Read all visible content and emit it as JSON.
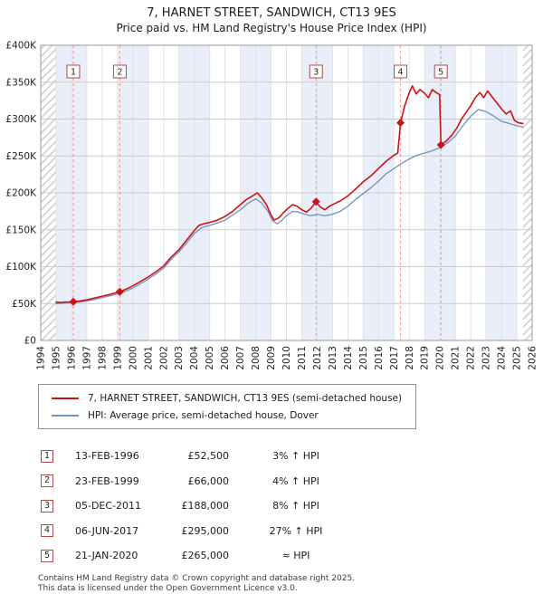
{
  "header": {
    "title": "7, HARNET STREET, SANDWICH, CT13 9ES",
    "subtitle": "Price paid vs. HM Land Registry's House Price Index (HPI)"
  },
  "chart_data": {
    "type": "line",
    "x_range": [
      1994,
      2026
    ],
    "y_range": [
      0,
      400000
    ],
    "y_tick_step": 50000,
    "y_tick_labels": [
      "£0",
      "£50K",
      "£100K",
      "£150K",
      "£200K",
      "£250K",
      "£300K",
      "£350K",
      "£400K"
    ],
    "x_tick_years": [
      1994,
      1995,
      1996,
      1997,
      1998,
      1999,
      2000,
      2001,
      2002,
      2003,
      2004,
      2005,
      2006,
      2007,
      2008,
      2009,
      2010,
      2011,
      2012,
      2013,
      2014,
      2015,
      2016,
      2017,
      2018,
      2019,
      2020,
      2021,
      2022,
      2023,
      2024,
      2025,
      2026
    ],
    "data_start": 1995.0,
    "data_end": 2025.4,
    "band_color": "#e9eef8",
    "grid_color": "#cccccc",
    "year_grid_color": "#dde3ee",
    "hatch_color": "#c9c9c9",
    "sale_line_color": "#e89999",
    "marker_color": "#cc1212",
    "number_box_border": "#b04848",
    "series": [
      {
        "name": "7, HARNET STREET, SANDWICH, CT13 9ES (semi-detached house)",
        "color": "#cc1212",
        "width": 1.6,
        "points": [
          [
            1995.0,
            52000
          ],
          [
            1995.3,
            51500
          ],
          [
            1995.6,
            52200
          ],
          [
            1995.9,
            52300
          ],
          [
            1996.12,
            52500
          ],
          [
            1996.5,
            53200
          ],
          [
            1997.0,
            55000
          ],
          [
            1997.5,
            57500
          ],
          [
            1998.0,
            60000
          ],
          [
            1998.5,
            62500
          ],
          [
            1999.15,
            66000
          ],
          [
            1999.5,
            69000
          ],
          [
            2000.0,
            74000
          ],
          [
            2000.5,
            80000
          ],
          [
            2001.0,
            86000
          ],
          [
            2001.5,
            93000
          ],
          [
            2002.0,
            101000
          ],
          [
            2002.5,
            113000
          ],
          [
            2003.0,
            123000
          ],
          [
            2003.5,
            136000
          ],
          [
            2004.0,
            149000
          ],
          [
            2004.3,
            156000
          ],
          [
            2004.6,
            158000
          ],
          [
            2005.0,
            160000
          ],
          [
            2005.5,
            163000
          ],
          [
            2006.0,
            168000
          ],
          [
            2006.5,
            175000
          ],
          [
            2007.0,
            184000
          ],
          [
            2007.4,
            191000
          ],
          [
            2007.8,
            196000
          ],
          [
            2008.1,
            200000
          ],
          [
            2008.4,
            193000
          ],
          [
            2008.7,
            184000
          ],
          [
            2009.0,
            170000
          ],
          [
            2009.2,
            163000
          ],
          [
            2009.5,
            166000
          ],
          [
            2009.8,
            173000
          ],
          [
            2010.1,
            179000
          ],
          [
            2010.4,
            184000
          ],
          [
            2010.7,
            182000
          ],
          [
            2011.0,
            177000
          ],
          [
            2011.3,
            174000
          ],
          [
            2011.6,
            179000
          ],
          [
            2011.93,
            188000
          ],
          [
            2012.2,
            181000
          ],
          [
            2012.5,
            177000
          ],
          [
            2012.8,
            182000
          ],
          [
            2013.1,
            185000
          ],
          [
            2013.5,
            189000
          ],
          [
            2014.0,
            196000
          ],
          [
            2014.5,
            205000
          ],
          [
            2015.0,
            215000
          ],
          [
            2015.5,
            223000
          ],
          [
            2016.0,
            233000
          ],
          [
            2016.5,
            243000
          ],
          [
            2017.0,
            251000
          ],
          [
            2017.25,
            254000
          ],
          [
            2017.43,
            295000
          ],
          [
            2017.7,
            318000
          ],
          [
            2018.0,
            336000
          ],
          [
            2018.2,
            345000
          ],
          [
            2018.45,
            334000
          ],
          [
            2018.7,
            340000
          ],
          [
            2019.0,
            335000
          ],
          [
            2019.25,
            329000
          ],
          [
            2019.5,
            340000
          ],
          [
            2019.75,
            336000
          ],
          [
            2019.98,
            333000
          ],
          [
            2020.06,
            265000
          ],
          [
            2020.4,
            270000
          ],
          [
            2020.8,
            279000
          ],
          [
            2021.1,
            288000
          ],
          [
            2021.4,
            300000
          ],
          [
            2021.7,
            309000
          ],
          [
            2022.0,
            318000
          ],
          [
            2022.3,
            329000
          ],
          [
            2022.6,
            336000
          ],
          [
            2022.85,
            329000
          ],
          [
            2023.1,
            338000
          ],
          [
            2023.4,
            330000
          ],
          [
            2023.7,
            322000
          ],
          [
            2024.0,
            314000
          ],
          [
            2024.3,
            307000
          ],
          [
            2024.6,
            311000
          ],
          [
            2024.85,
            298000
          ],
          [
            2025.1,
            295000
          ],
          [
            2025.4,
            294000
          ]
        ]
      },
      {
        "name": "HPI: Average price, semi-detached house, Dover",
        "color": "#6f94bd",
        "width": 1.3,
        "points": [
          [
            1995.0,
            50000
          ],
          [
            1995.5,
            50500
          ],
          [
            1996.0,
            51000
          ],
          [
            1996.5,
            52000
          ],
          [
            1997.0,
            53500
          ],
          [
            1997.5,
            55500
          ],
          [
            1998.0,
            58000
          ],
          [
            1998.5,
            60500
          ],
          [
            1999.0,
            63000
          ],
          [
            1999.5,
            66500
          ],
          [
            2000.0,
            71000
          ],
          [
            2000.5,
            77000
          ],
          [
            2001.0,
            83000
          ],
          [
            2001.5,
            90000
          ],
          [
            2002.0,
            98000
          ],
          [
            2002.5,
            110000
          ],
          [
            2003.0,
            120000
          ],
          [
            2003.5,
            132000
          ],
          [
            2004.0,
            145000
          ],
          [
            2004.5,
            153000
          ],
          [
            2005.0,
            156000
          ],
          [
            2005.5,
            159000
          ],
          [
            2006.0,
            163000
          ],
          [
            2006.5,
            170000
          ],
          [
            2007.0,
            177000
          ],
          [
            2007.5,
            186000
          ],
          [
            2008.0,
            192000
          ],
          [
            2008.4,
            186000
          ],
          [
            2008.8,
            175000
          ],
          [
            2009.1,
            162000
          ],
          [
            2009.4,
            158000
          ],
          [
            2009.7,
            163000
          ],
          [
            2010.0,
            169000
          ],
          [
            2010.4,
            175000
          ],
          [
            2010.8,
            174000
          ],
          [
            2011.2,
            171000
          ],
          [
            2011.6,
            169000
          ],
          [
            2012.0,
            171000
          ],
          [
            2012.5,
            169000
          ],
          [
            2013.0,
            171000
          ],
          [
            2013.5,
            175000
          ],
          [
            2014.0,
            182000
          ],
          [
            2014.5,
            191000
          ],
          [
            2015.0,
            199000
          ],
          [
            2015.5,
            207000
          ],
          [
            2016.0,
            216000
          ],
          [
            2016.5,
            226000
          ],
          [
            2017.0,
            233000
          ],
          [
            2017.5,
            240000
          ],
          [
            2018.0,
            246000
          ],
          [
            2018.5,
            251000
          ],
          [
            2019.0,
            254000
          ],
          [
            2019.5,
            257000
          ],
          [
            2020.06,
            262000
          ],
          [
            2020.5,
            268000
          ],
          [
            2021.0,
            277000
          ],
          [
            2021.5,
            291000
          ],
          [
            2022.0,
            304000
          ],
          [
            2022.5,
            313000
          ],
          [
            2023.0,
            310000
          ],
          [
            2023.5,
            304000
          ],
          [
            2024.0,
            297000
          ],
          [
            2024.5,
            294000
          ],
          [
            2025.0,
            291000
          ],
          [
            2025.4,
            289000
          ]
        ]
      }
    ],
    "sales": [
      {
        "n": "1",
        "x": 1996.12,
        "price": 52500
      },
      {
        "n": "2",
        "x": 1999.15,
        "price": 66000
      },
      {
        "n": "3",
        "x": 2011.93,
        "price": 188000
      },
      {
        "n": "4",
        "x": 2017.43,
        "price": 295000
      },
      {
        "n": "5",
        "x": 2020.06,
        "price": 265000
      }
    ]
  },
  "legend": {
    "items": [
      {
        "label": "7, HARNET STREET, SANDWICH, CT13 9ES (semi-detached house)",
        "color": "#cc1212"
      },
      {
        "label": "HPI: Average price, semi-detached house, Dover",
        "color": "#6f94bd"
      }
    ]
  },
  "sales_table": {
    "rows": [
      {
        "n": "1",
        "date": "13-FEB-1996",
        "price": "£52,500",
        "hpi": "3% ↑ HPI"
      },
      {
        "n": "2",
        "date": "23-FEB-1999",
        "price": "£66,000",
        "hpi": "4% ↑ HPI"
      },
      {
        "n": "3",
        "date": "05-DEC-2011",
        "price": "£188,000",
        "hpi": "8% ↑ HPI"
      },
      {
        "n": "4",
        "date": "06-JUN-2017",
        "price": "£295,000",
        "hpi": "27% ↑ HPI"
      },
      {
        "n": "5",
        "date": "21-JAN-2020",
        "price": "£265,000",
        "hpi": "≈ HPI"
      }
    ]
  },
  "footer": {
    "line1": "Contains HM Land Registry data © Crown copyright and database right 2025.",
    "line2": "This data is licensed under the Open Government Licence v3.0."
  }
}
